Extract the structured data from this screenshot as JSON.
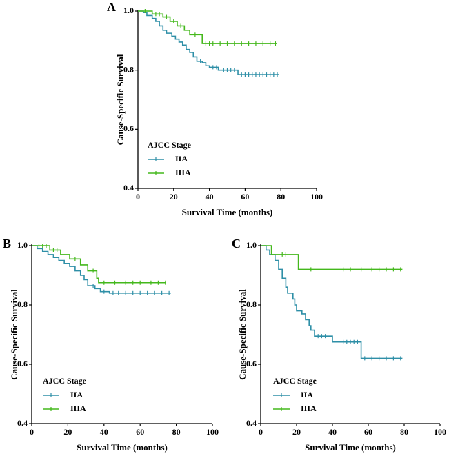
{
  "chart_data": [
    {
      "type": "line",
      "step": true,
      "title": "A",
      "xlabel": "Survival Time (months)",
      "ylabel": "Cause-Specific Survival",
      "legend_title": "AJCC Stage",
      "xlim": [
        0,
        100
      ],
      "ylim": [
        0.4,
        1.0
      ],
      "xticks": [
        0,
        20,
        40,
        60,
        80,
        100
      ],
      "yticks": [
        0.4,
        0.6,
        0.8,
        {
          "value": 1.0,
          "label": "1.0"
        }
      ],
      "series": [
        {
          "name": "IIA",
          "color": "#2e8fa7",
          "x": [
            0,
            3,
            5,
            8,
            10,
            12,
            14,
            16,
            19,
            21,
            23,
            25,
            27,
            29,
            31,
            33,
            36,
            38,
            40,
            45,
            56,
            79
          ],
          "values": [
            1.0,
            0.995,
            0.985,
            0.975,
            0.965,
            0.95,
            0.935,
            0.925,
            0.915,
            0.905,
            0.895,
            0.885,
            0.87,
            0.86,
            0.845,
            0.83,
            0.825,
            0.815,
            0.81,
            0.8,
            0.785,
            0.785
          ],
          "censored": [
            35,
            42,
            44,
            48,
            50,
            52,
            54,
            58,
            60,
            62,
            64,
            66,
            68,
            70,
            72,
            74,
            76,
            78
          ]
        },
        {
          "name": "IIIA",
          "color": "#44b81c",
          "x": [
            0,
            8,
            14,
            18,
            22,
            26,
            29,
            36,
            78
          ],
          "values": [
            1.0,
            0.99,
            0.98,
            0.965,
            0.95,
            0.935,
            0.92,
            0.89,
            0.89
          ],
          "censored": [
            4,
            10,
            12,
            16,
            20,
            24,
            32,
            38,
            40,
            42,
            46,
            50,
            54,
            58,
            62,
            66,
            70,
            74,
            77
          ]
        }
      ]
    },
    {
      "type": "line",
      "step": true,
      "title": "B",
      "xlabel": "Survival Time (months)",
      "ylabel": "Cause-Specific Survival",
      "legend_title": "AJCC Stage",
      "xlim": [
        0,
        100
      ],
      "ylim": [
        0.4,
        1.0
      ],
      "xticks": [
        0,
        20,
        40,
        60,
        80,
        100
      ],
      "yticks": [
        0.4,
        0.6,
        0.8,
        {
          "value": 1.0,
          "label": "1.0"
        }
      ],
      "series": [
        {
          "name": "IIA",
          "color": "#2e8fa7",
          "x": [
            0,
            3,
            6,
            9,
            12,
            15,
            18,
            21,
            24,
            27,
            29,
            31,
            35,
            38,
            43,
            77
          ],
          "values": [
            1.0,
            0.99,
            0.98,
            0.97,
            0.96,
            0.95,
            0.94,
            0.93,
            0.915,
            0.9,
            0.885,
            0.865,
            0.855,
            0.845,
            0.84,
            0.84
          ],
          "censored": [
            34,
            40,
            45,
            48,
            52,
            56,
            60,
            64,
            68,
            72,
            76
          ]
        },
        {
          "name": "IIIA",
          "color": "#44b81c",
          "x": [
            0,
            10,
            16,
            21,
            27,
            31,
            36,
            37,
            74
          ],
          "values": [
            1.0,
            0.985,
            0.97,
            0.955,
            0.935,
            0.915,
            0.89,
            0.875,
            0.875
          ],
          "censored": [
            4,
            6,
            8,
            12,
            14,
            24,
            34,
            40,
            46,
            52,
            56,
            60,
            66,
            70,
            74
          ]
        }
      ]
    },
    {
      "type": "line",
      "step": true,
      "title": "C",
      "xlabel": "Survival Time (months)",
      "ylabel": "Cause-Specific Survival",
      "legend_title": "AJCC Stage",
      "xlim": [
        0,
        100
      ],
      "ylim": [
        0.4,
        1.0
      ],
      "xticks": [
        0,
        20,
        40,
        60,
        80,
        100
      ],
      "yticks": [
        0.4,
        0.6,
        0.8,
        {
          "value": 1.0,
          "label": "1.0"
        }
      ],
      "series": [
        {
          "name": "IIA",
          "color": "#2e8fa7",
          "x": [
            0,
            3,
            5,
            8,
            10,
            12,
            14,
            15,
            18,
            19,
            20,
            23,
            25,
            27,
            28,
            30,
            40,
            56,
            79
          ],
          "values": [
            1.0,
            0.985,
            0.97,
            0.95,
            0.92,
            0.89,
            0.86,
            0.84,
            0.82,
            0.8,
            0.78,
            0.77,
            0.75,
            0.73,
            0.715,
            0.695,
            0.675,
            0.62,
            0.62
          ],
          "censored": [
            32,
            34,
            36,
            46,
            48,
            50,
            52,
            54,
            58,
            62,
            66,
            70,
            74,
            78
          ]
        },
        {
          "name": "IIIA",
          "color": "#44b81c",
          "x": [
            0,
            6,
            21,
            79
          ],
          "values": [
            1.0,
            0.97,
            0.92,
            0.92
          ],
          "censored": [
            12,
            14,
            28,
            46,
            50,
            56,
            62,
            66,
            70,
            74,
            78
          ]
        }
      ]
    }
  ]
}
